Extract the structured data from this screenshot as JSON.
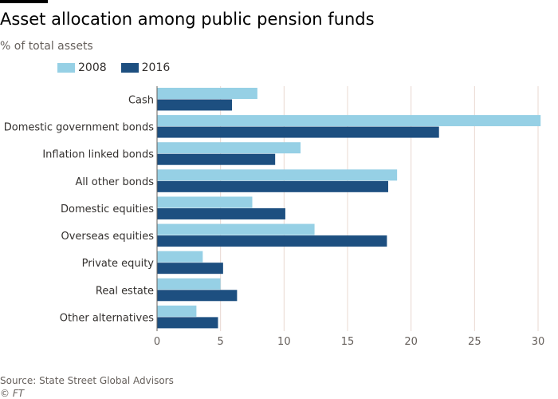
{
  "header": {
    "title": "Asset allocation among public pension funds",
    "subtitle": "% of total assets"
  },
  "legend": {
    "items": [
      {
        "label": "2008",
        "color": "#96d0e5"
      },
      {
        "label": "2016",
        "color": "#1d4f80"
      }
    ]
  },
  "footer": {
    "source": "Source: State Street Global Advisors",
    "copyright": "© FT"
  },
  "chart_data": {
    "type": "bar",
    "orientation": "horizontal",
    "title": "Asset allocation among public pension funds",
    "subtitle": "% of total assets",
    "categories": [
      "Cash",
      "Domestic government bonds",
      "Inflation linked bonds",
      "All other bonds",
      "Domestic equities",
      "Overseas equities",
      "Private equity",
      "Real estate",
      "Other alternatives"
    ],
    "series": [
      {
        "name": "2008",
        "color": "#96d0e5",
        "values": [
          7.9,
          30.2,
          11.3,
          18.9,
          7.5,
          12.4,
          3.6,
          5.0,
          3.1
        ]
      },
      {
        "name": "2016",
        "color": "#1d4f80",
        "values": [
          5.9,
          22.2,
          9.3,
          18.2,
          10.1,
          18.1,
          5.2,
          6.3,
          4.8
        ]
      }
    ],
    "xlim": [
      0,
      30
    ],
    "xticks": [
      0,
      5,
      10,
      15,
      20,
      25,
      30
    ],
    "grid": true,
    "legend_position": "top-left"
  }
}
